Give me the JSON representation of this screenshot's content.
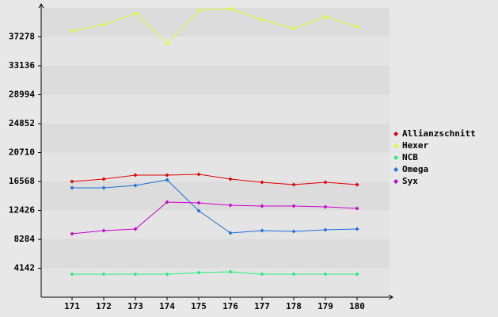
{
  "chart_data": {
    "type": "line",
    "categories": [
      "171",
      "172",
      "173",
      "174",
      "175",
      "176",
      "177",
      "178",
      "179",
      "180"
    ],
    "series": [
      {
        "name": "Allianzschnitt",
        "color": "#e00000",
        "values": [
          16571,
          16912,
          17479,
          17479,
          17593,
          16912,
          16458,
          16117,
          16458,
          16117
        ]
      },
      {
        "name": "Hexer",
        "color": "#ddff22",
        "values": [
          38136,
          39044,
          40633,
          36320,
          41087,
          41300,
          39725,
          38477,
          40179,
          38704
        ]
      },
      {
        "name": "NCB",
        "color": "#22ee77",
        "values": [
          3292,
          3292,
          3292,
          3292,
          3519,
          3632,
          3292,
          3292,
          3292,
          3292
        ]
      },
      {
        "name": "Omega",
        "color": "#1e6fe0",
        "values": [
          15663,
          15663,
          16004,
          16798,
          12372,
          9194,
          9534,
          9421,
          9648,
          9761
        ]
      },
      {
        "name": "Syx",
        "color": "#cc00cc",
        "values": [
          9080,
          9534,
          9761,
          13620,
          13507,
          13166,
          13053,
          13053,
          12939,
          12712
        ]
      }
    ],
    "ylim": [
      0,
      41420
    ],
    "yticks": [
      4142,
      8284,
      12426,
      16568,
      20710,
      24852,
      28994,
      33136,
      37278
    ],
    "grid": true,
    "legend": "right"
  }
}
